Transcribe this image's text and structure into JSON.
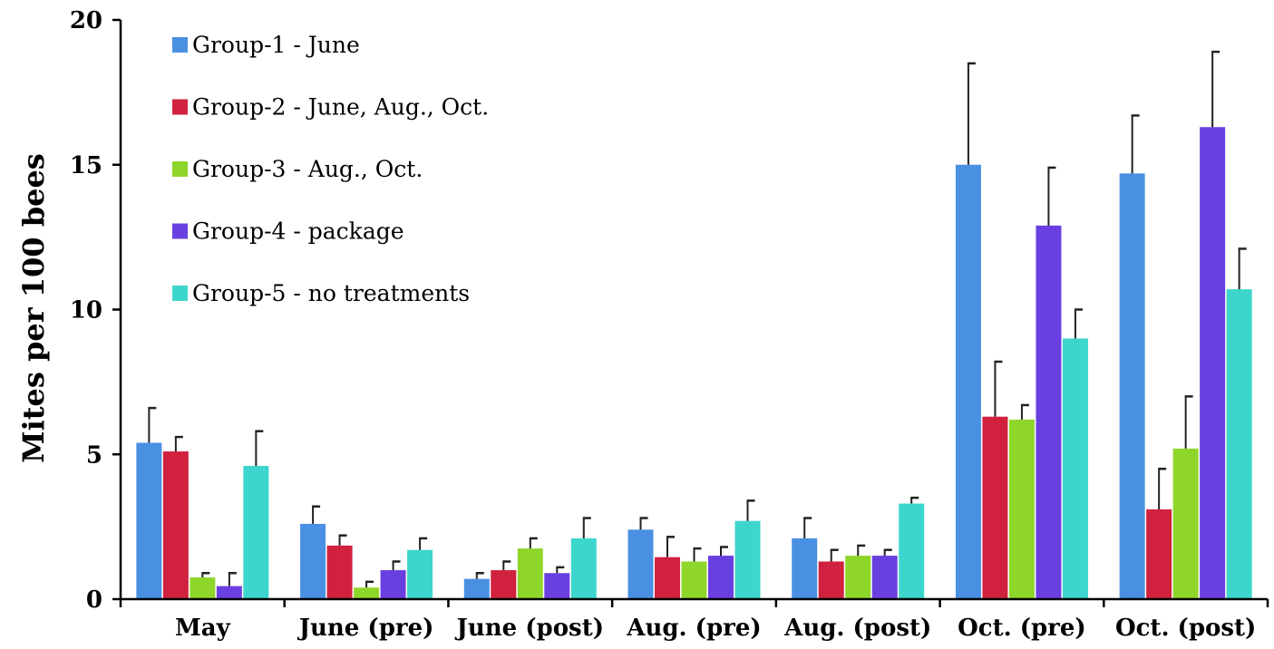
{
  "chart_data": {
    "type": "bar",
    "title": "",
    "xlabel": "",
    "ylabel": "Mites per 100 bees",
    "ylim": [
      0,
      20
    ],
    "yticks": [
      0,
      5,
      10,
      15,
      20
    ],
    "grid": false,
    "legend_position": "top-left",
    "error_bars": true,
    "categories": [
      "May",
      "June (pre)",
      "June (post)",
      "Aug. (pre)",
      "Aug. (post)",
      "Oct. (pre)",
      "Oct. (post)"
    ],
    "series": [
      {
        "name": "Group-1 - June",
        "color": "#4a90e2",
        "values": [
          5.4,
          2.6,
          0.7,
          2.4,
          2.1,
          15.0,
          14.7
        ],
        "errors": [
          1.2,
          0.6,
          0.2,
          0.4,
          0.7,
          3.5,
          2.0
        ]
      },
      {
        "name": "Group-2 - June, Aug., Oct.",
        "color": "#d0213f",
        "values": [
          5.1,
          1.85,
          1.0,
          1.45,
          1.3,
          6.3,
          3.1
        ],
        "errors": [
          0.5,
          0.35,
          0.3,
          0.7,
          0.4,
          1.9,
          1.4
        ]
      },
      {
        "name": "Group-3 - Aug., Oct.",
        "color": "#8fd62a",
        "values": [
          0.75,
          0.4,
          1.75,
          1.3,
          1.5,
          6.2,
          5.2
        ],
        "errors": [
          0.15,
          0.2,
          0.35,
          0.45,
          0.35,
          0.5,
          1.8
        ]
      },
      {
        "name": "Group-4 - package",
        "color": "#6a3fe0",
        "values": [
          0.45,
          1.0,
          0.9,
          1.5,
          1.5,
          12.9,
          16.3
        ],
        "errors": [
          0.45,
          0.3,
          0.2,
          0.3,
          0.2,
          2.0,
          2.6
        ]
      },
      {
        "name": "Group-5 - no treatments",
        "color": "#3dd6cc",
        "values": [
          4.6,
          1.7,
          2.1,
          2.7,
          3.3,
          9.0,
          10.7
        ],
        "errors": [
          1.2,
          0.4,
          0.7,
          0.7,
          0.2,
          1.0,
          1.4
        ]
      }
    ]
  }
}
